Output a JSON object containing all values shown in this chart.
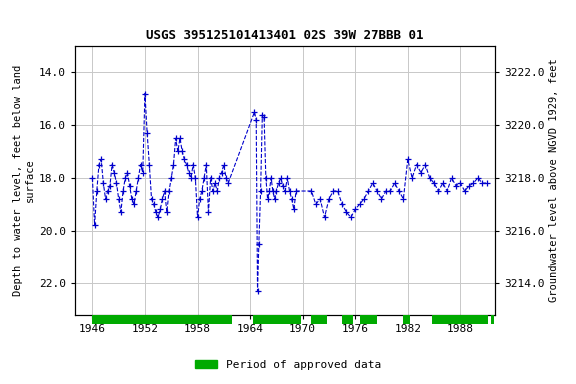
{
  "title": "USGS 395125101413401 02S 39W 27BBB 01",
  "ylabel_left": "Depth to water level, feet below land\nsurface",
  "ylabel_right": "Groundwater level above NGVD 1929, feet",
  "ylim_left": [
    23.2,
    13.0
  ],
  "ylim_right": [
    3212.8,
    3223.0
  ],
  "xlim": [
    1944.0,
    1992.0
  ],
  "yticks_left": [
    14.0,
    16.0,
    18.0,
    20.0,
    22.0
  ],
  "yticks_right": [
    3214.0,
    3216.0,
    3218.0,
    3220.0,
    3222.0
  ],
  "xticks": [
    1946,
    1952,
    1958,
    1964,
    1970,
    1976,
    1982,
    1988
  ],
  "bg_color": "#ffffff",
  "grid_color": "#c8c8c8",
  "line_color": "#0000cc",
  "marker_color": "#0000cc",
  "legend_label": "Period of approved data",
  "legend_color": "#00aa00",
  "data_x": [
    1946.0,
    1946.25,
    1946.5,
    1946.75,
    1947.0,
    1947.25,
    1947.5,
    1947.75,
    1948.0,
    1948.25,
    1948.5,
    1948.75,
    1949.0,
    1949.25,
    1949.5,
    1949.75,
    1950.0,
    1950.25,
    1950.5,
    1950.75,
    1951.0,
    1951.25,
    1951.5,
    1951.75,
    1952.0,
    1952.25,
    1952.5,
    1952.75,
    1953.0,
    1953.25,
    1953.5,
    1953.75,
    1954.0,
    1954.25,
    1954.5,
    1954.75,
    1955.0,
    1955.25,
    1955.5,
    1955.75,
    1956.0,
    1956.25,
    1956.5,
    1956.75,
    1957.0,
    1957.25,
    1957.5,
    1957.75,
    1958.0,
    1958.25,
    1958.5,
    1958.75,
    1959.0,
    1959.25,
    1959.5,
    1959.75,
    1960.0,
    1960.25,
    1960.5,
    1960.75,
    1961.0,
    1961.25,
    1961.5,
    1964.5,
    1964.7,
    1964.85,
    1965.0,
    1965.2,
    1965.4,
    1965.6,
    1965.8,
    1966.0,
    1966.2,
    1966.4,
    1966.6,
    1966.8,
    1967.0,
    1967.25,
    1967.5,
    1967.75,
    1968.0,
    1968.25,
    1968.5,
    1968.75,
    1969.0,
    1969.25,
    1971.0,
    1971.5,
    1972.0,
    1972.5,
    1973.0,
    1973.5,
    1974.0,
    1974.5,
    1975.0,
    1975.5,
    1976.0,
    1976.5,
    1977.0,
    1977.5,
    1978.0,
    1978.5,
    1979.0,
    1979.5,
    1980.0,
    1980.5,
    1981.0,
    1981.5,
    1982.0,
    1982.5,
    1983.0,
    1983.5,
    1984.0,
    1984.5,
    1985.0,
    1985.5,
    1986.0,
    1986.5,
    1987.0,
    1987.5,
    1988.0,
    1988.5,
    1989.0,
    1989.5,
    1990.0,
    1990.5,
    1991.0
  ],
  "data_y": [
    18.0,
    19.8,
    18.5,
    17.5,
    17.3,
    18.2,
    18.8,
    18.5,
    18.3,
    17.5,
    17.8,
    18.2,
    18.8,
    19.3,
    18.5,
    18.0,
    17.8,
    18.3,
    18.8,
    19.0,
    18.5,
    18.0,
    17.5,
    17.8,
    14.8,
    16.3,
    17.5,
    18.8,
    19.0,
    19.3,
    19.5,
    19.2,
    18.8,
    18.5,
    19.3,
    18.5,
    18.0,
    17.5,
    16.5,
    17.0,
    16.5,
    17.0,
    17.3,
    17.5,
    17.8,
    18.0,
    17.5,
    18.0,
    19.5,
    18.8,
    18.5,
    18.0,
    17.5,
    19.3,
    18.0,
    18.5,
    18.2,
    18.5,
    18.0,
    17.8,
    17.5,
    18.0,
    18.2,
    15.5,
    15.8,
    22.3,
    20.5,
    18.5,
    15.6,
    15.7,
    18.0,
    18.8,
    18.5,
    18.0,
    18.5,
    18.8,
    18.5,
    18.2,
    18.0,
    18.3,
    18.5,
    18.0,
    18.5,
    18.8,
    19.2,
    18.5,
    18.5,
    19.0,
    18.8,
    19.5,
    18.8,
    18.5,
    18.5,
    19.0,
    19.3,
    19.5,
    19.2,
    19.0,
    18.8,
    18.5,
    18.2,
    18.5,
    18.8,
    18.5,
    18.5,
    18.2,
    18.5,
    18.8,
    17.3,
    18.0,
    17.5,
    17.8,
    17.5,
    18.0,
    18.2,
    18.5,
    18.2,
    18.5,
    18.0,
    18.3,
    18.2,
    18.5,
    18.3,
    18.2,
    18.0,
    18.2,
    18.2
  ],
  "approved_periods": [
    [
      1946.0,
      1961.9
    ],
    [
      1964.3,
      1969.8
    ],
    [
      1971.0,
      1972.8
    ],
    [
      1974.5,
      1975.8
    ],
    [
      1976.5,
      1978.5
    ],
    [
      1981.5,
      1982.3
    ],
    [
      1984.8,
      1991.2
    ],
    [
      1991.5,
      1991.8
    ]
  ]
}
